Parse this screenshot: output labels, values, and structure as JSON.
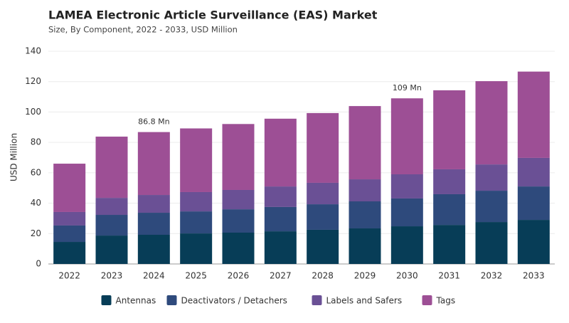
{
  "chart_data": {
    "type": "stacked_bar",
    "title": "LAMEA Electronic Article Surveillance (EAS) Market",
    "subtitle": "Size, By Component, 2022 - 2033, USD Million",
    "y_label": "USD Million",
    "categories": [
      "2022",
      "2023",
      "2024",
      "2025",
      "2026",
      "2027",
      "2028",
      "2029",
      "2030",
      "2031",
      "2032",
      "2033"
    ],
    "series": [
      {
        "name": "Antennas",
        "color": "#073d57",
        "values": [
          14.5,
          18.7,
          19.2,
          20.1,
          20.6,
          21.5,
          22.5,
          23.4,
          24.8,
          25.7,
          27.6,
          29.0
        ]
      },
      {
        "name": "Deactivators / Detachers",
        "color": "#2e4a7c",
        "values": [
          10.8,
          13.6,
          14.5,
          14.5,
          15.4,
          16.0,
          16.8,
          17.8,
          18.3,
          20.2,
          20.6,
          22.0
        ]
      },
      {
        "name": "Labels and Safers",
        "color": "#6a5095",
        "values": [
          8.9,
          11.2,
          11.7,
          12.7,
          12.7,
          13.5,
          14.1,
          14.5,
          15.9,
          16.4,
          17.3,
          18.8
        ]
      },
      {
        "name": "Tags",
        "color": "#9d4f95",
        "values": [
          31.8,
          40.3,
          41.4,
          41.9,
          43.4,
          44.6,
          45.9,
          48.2,
          50.0,
          52.0,
          54.8,
          56.8
        ]
      }
    ],
    "annotations": [
      {
        "x": "2024",
        "label": "86.8 Mn"
      },
      {
        "x": "2030",
        "label": "109 Mn"
      }
    ],
    "ylim": [
      0,
      140
    ],
    "yticks": [
      0,
      20,
      40,
      60,
      80,
      100,
      120,
      140
    ],
    "grid": true
  }
}
